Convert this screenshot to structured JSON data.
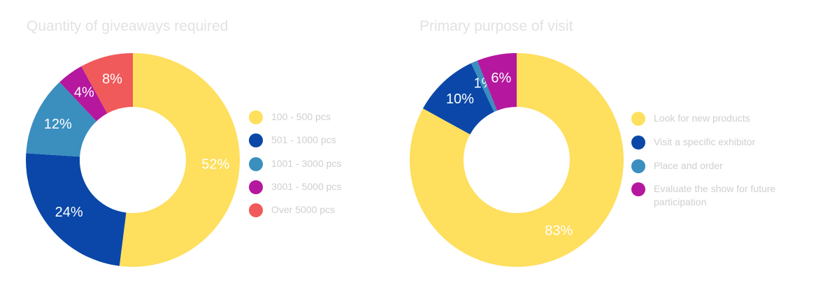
{
  "chart_data": [
    {
      "type": "pie",
      "title": "Quantity of giveaways required",
      "categories": [
        "100 - 500 pcs",
        "501 - 1000 pcs",
        "1001 - 3000 pcs",
        "3001 - 5000 pcs",
        "Over 5000 pcs"
      ],
      "values": [
        52,
        24,
        12,
        4,
        8
      ],
      "value_labels": [
        "52%",
        "24%",
        "12%",
        "4%",
        "8%"
      ],
      "colors": [
        "#fedf5e",
        "#0a47a8",
        "#3a8fbf",
        "#b5179e",
        "#f05a5a"
      ]
    },
    {
      "type": "pie",
      "title": "Primary purpose of visit",
      "categories": [
        "Look for new products",
        "Visit a specific exhibitor",
        "Place and order",
        "Evaluate the show for future participation"
      ],
      "values": [
        83,
        10,
        1,
        6
      ],
      "value_labels": [
        "83%",
        "10%",
        "1%",
        "6%"
      ],
      "colors": [
        "#fedf5e",
        "#0a47a8",
        "#3a8fbf",
        "#b5179e"
      ]
    }
  ]
}
